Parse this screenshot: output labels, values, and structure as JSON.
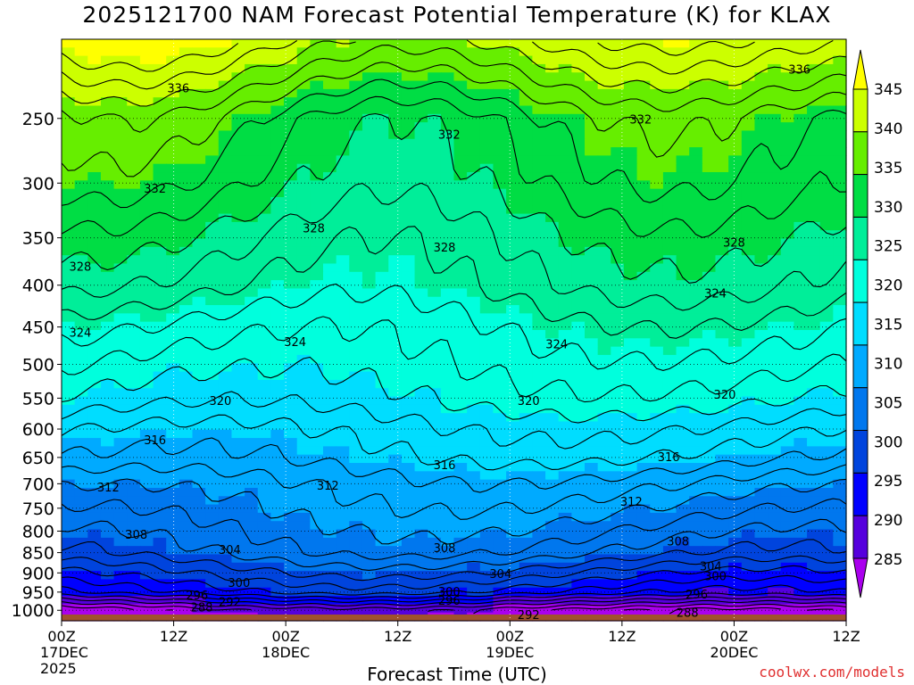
{
  "chart_data": {
    "type": "heatmap",
    "title": "2025121700 NAM Forecast Potential Temperature (K) for KLAX",
    "xlabel": "Forecast Time (UTC)",
    "credit": "coolwx.com/models",
    "y_axis": {
      "quantity": "pressure (hPa)",
      "scale": "log",
      "inverted": true,
      "ylim": [
        1030,
        200
      ],
      "ticks": [
        250,
        300,
        350,
        400,
        450,
        500,
        550,
        600,
        650,
        700,
        750,
        800,
        850,
        900,
        950,
        1000
      ]
    },
    "x_axis": {
      "xlim_hours": [
        0,
        84
      ],
      "ticks": [
        {
          "hour": 0,
          "lines": [
            "00Z",
            "17DEC",
            "2025"
          ]
        },
        {
          "hour": 12,
          "lines": [
            "12Z"
          ]
        },
        {
          "hour": 24,
          "lines": [
            "00Z",
            "18DEC"
          ]
        },
        {
          "hour": 36,
          "lines": [
            "12Z"
          ]
        },
        {
          "hour": 48,
          "lines": [
            "00Z",
            "19DEC"
          ]
        },
        {
          "hour": 60,
          "lines": [
            "12Z"
          ]
        },
        {
          "hour": 72,
          "lines": [
            "00Z",
            "20DEC"
          ]
        },
        {
          "hour": 84,
          "lines": [
            "12Z"
          ]
        }
      ]
    },
    "colorbar": {
      "labels": [
        345,
        340,
        335,
        330,
        325,
        320,
        315,
        310,
        305,
        300,
        295,
        290,
        285
      ],
      "bands": [
        {
          "min": 345,
          "max": 350,
          "color": "#ffff00"
        },
        {
          "min": 340,
          "max": 345,
          "color": "#ccff00"
        },
        {
          "min": 335,
          "max": 340,
          "color": "#66ee00"
        },
        {
          "min": 330,
          "max": 335,
          "color": "#00dd44"
        },
        {
          "min": 325,
          "max": 330,
          "color": "#00ee99"
        },
        {
          "min": 320,
          "max": 325,
          "color": "#00ffdd"
        },
        {
          "min": 315,
          "max": 320,
          "color": "#00ddff"
        },
        {
          "min": 310,
          "max": 315,
          "color": "#00aaff"
        },
        {
          "min": 305,
          "max": 310,
          "color": "#0077ee"
        },
        {
          "min": 300,
          "max": 305,
          "color": "#0044dd"
        },
        {
          "min": 295,
          "max": 300,
          "color": "#0000ff"
        },
        {
          "min": 290,
          "max": 295,
          "color": "#5500dd"
        },
        {
          "min": 280,
          "max": 290,
          "color": "#aa00ee"
        }
      ]
    },
    "ground_color": "#a0522d",
    "contour_interval_K": 2,
    "profile_mean": [
      {
        "p": 1000,
        "theta": 288
      },
      {
        "p": 970,
        "theta": 294
      },
      {
        "p": 950,
        "theta": 298
      },
      {
        "p": 900,
        "theta": 302
      },
      {
        "p": 850,
        "theta": 306
      },
      {
        "p": 800,
        "theta": 308
      },
      {
        "p": 750,
        "theta": 310
      },
      {
        "p": 700,
        "theta": 312
      },
      {
        "p": 650,
        "theta": 315
      },
      {
        "p": 600,
        "theta": 317
      },
      {
        "p": 550,
        "theta": 320
      },
      {
        "p": 500,
        "theta": 322
      },
      {
        "p": 450,
        "theta": 324
      },
      {
        "p": 400,
        "theta": 327
      },
      {
        "p": 350,
        "theta": 329
      },
      {
        "p": 300,
        "theta": 332
      },
      {
        "p": 250,
        "theta": 334
      },
      {
        "p": 200,
        "theta": 343
      }
    ],
    "contour_labels": [
      {
        "value": "336",
        "hour": 12.5,
        "p": 230
      },
      {
        "value": "336",
        "hour": 79,
        "p": 218
      },
      {
        "value": "332",
        "hour": 62,
        "p": 251
      },
      {
        "value": "332",
        "hour": 41.5,
        "p": 262
      },
      {
        "value": "332",
        "hour": 10,
        "p": 305
      },
      {
        "value": "328",
        "hour": 27,
        "p": 341
      },
      {
        "value": "328",
        "hour": 41,
        "p": 360
      },
      {
        "value": "328",
        "hour": 72,
        "p": 355
      },
      {
        "value": "328",
        "hour": 2,
        "p": 380
      },
      {
        "value": "324",
        "hour": 70,
        "p": 410
      },
      {
        "value": "324",
        "hour": 2,
        "p": 458
      },
      {
        "value": "324",
        "hour": 25,
        "p": 470
      },
      {
        "value": "324",
        "hour": 53,
        "p": 473
      },
      {
        "value": "320",
        "hour": 17,
        "p": 555
      },
      {
        "value": "320",
        "hour": 50,
        "p": 555
      },
      {
        "value": "320",
        "hour": 71,
        "p": 545
      },
      {
        "value": "316",
        "hour": 10,
        "p": 620
      },
      {
        "value": "316",
        "hour": 41,
        "p": 665
      },
      {
        "value": "316",
        "hour": 65,
        "p": 650
      },
      {
        "value": "312",
        "hour": 5,
        "p": 708
      },
      {
        "value": "312",
        "hour": 28.5,
        "p": 705
      },
      {
        "value": "312",
        "hour": 61,
        "p": 737
      },
      {
        "value": "308",
        "hour": 8,
        "p": 809
      },
      {
        "value": "308",
        "hour": 41,
        "p": 840
      },
      {
        "value": "308",
        "hour": 66,
        "p": 825
      },
      {
        "value": "304",
        "hour": 18,
        "p": 845
      },
      {
        "value": "304",
        "hour": 47,
        "p": 904
      },
      {
        "value": "304",
        "hour": 69.5,
        "p": 885
      },
      {
        "value": "300",
        "hour": 19,
        "p": 927
      },
      {
        "value": "300",
        "hour": 41.5,
        "p": 950
      },
      {
        "value": "300",
        "hour": 70,
        "p": 910
      },
      {
        "value": "296",
        "hour": 14.5,
        "p": 960
      },
      {
        "value": "296",
        "hour": 41.5,
        "p": 975
      },
      {
        "value": "296",
        "hour": 68,
        "p": 958
      },
      {
        "value": "292",
        "hour": 18,
        "p": 978
      },
      {
        "value": "292",
        "hour": 50,
        "p": 1015
      },
      {
        "value": "288",
        "hour": 15,
        "p": 993
      },
      {
        "value": "288",
        "hour": 67,
        "p": 1008
      }
    ]
  }
}
